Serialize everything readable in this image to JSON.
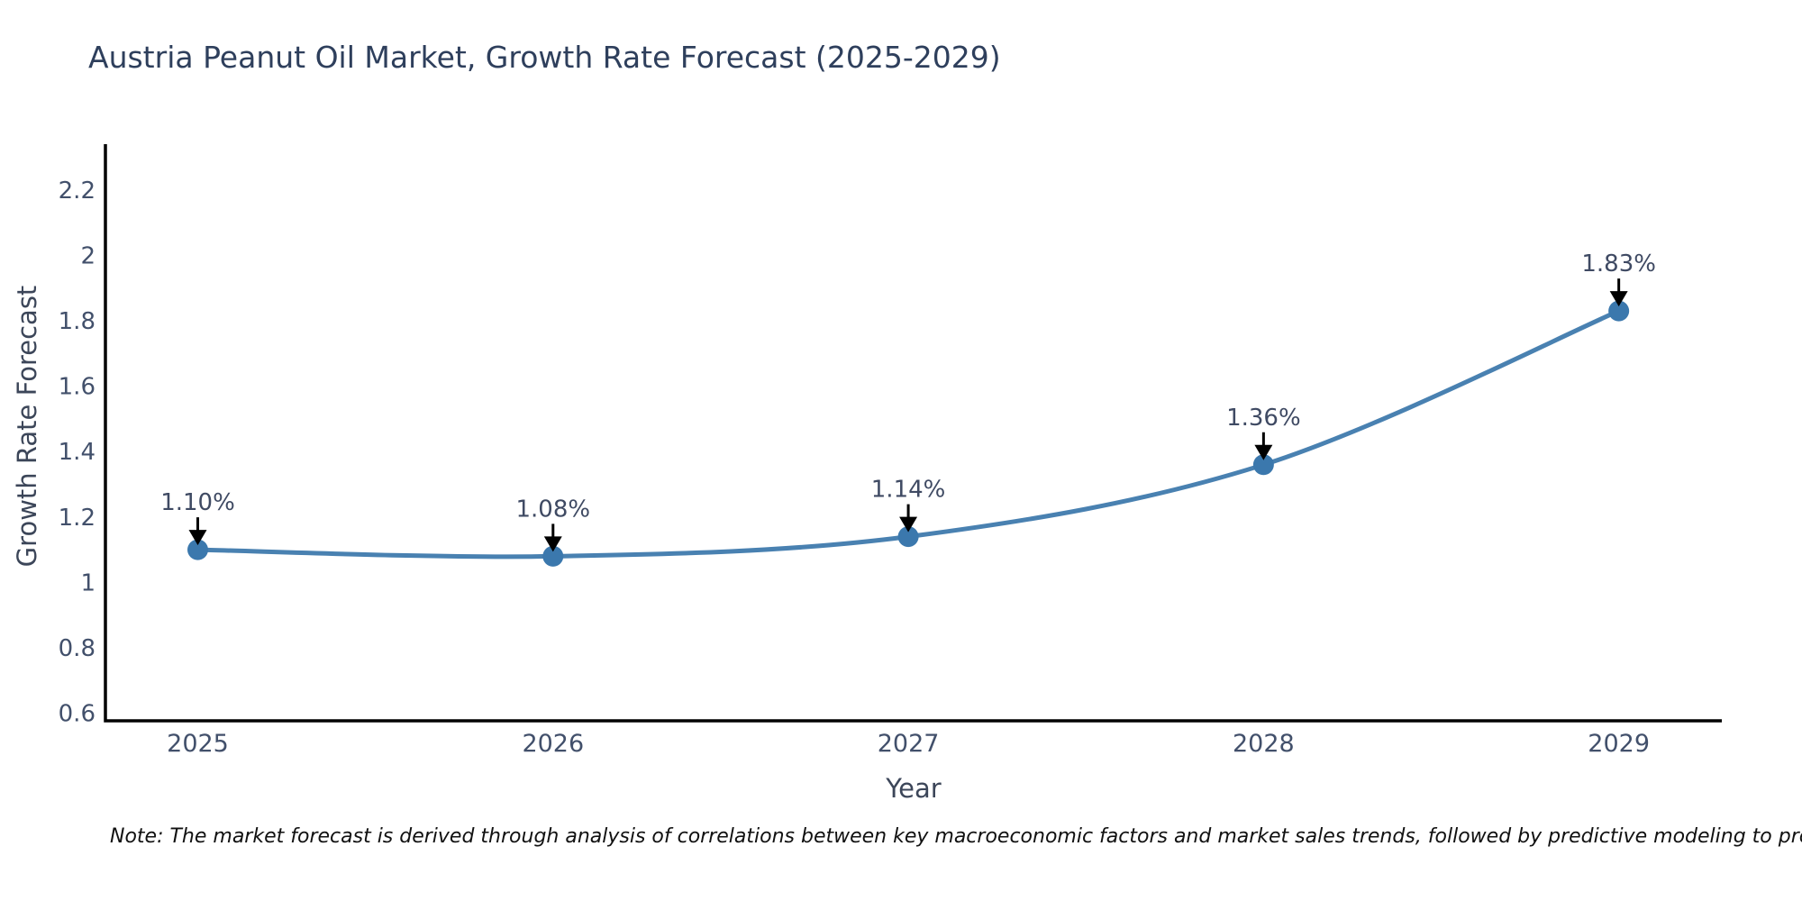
{
  "page": {
    "note": "Note: The market forecast is derived through analysis of correlations between key macroeconomic factors and market sales trends, followed by predictive modeling to project future sales"
  },
  "chart_data": {
    "type": "line",
    "title": "Austria Peanut Oil Market, Growth Rate Forecast (2025-2029)",
    "xlabel": "Year",
    "ylabel": "Growth Rate Forecast",
    "x": [
      2025,
      2026,
      2027,
      2028,
      2029
    ],
    "values": [
      1.1,
      1.08,
      1.14,
      1.36,
      1.83
    ],
    "point_labels": [
      "1.10%",
      "1.08%",
      "1.14%",
      "1.36%",
      "1.83%"
    ],
    "x_ticks": [
      "2025",
      "2026",
      "2027",
      "2028",
      "2029"
    ],
    "y_ticks": [
      0.6,
      0.8,
      1,
      1.2,
      1.4,
      1.6,
      1.8,
      2,
      2.2
    ],
    "xlim": [
      2024.74,
      2029.29
    ],
    "ylim": [
      0.577,
      2.34
    ],
    "grid": false,
    "legend": "none",
    "annotation_style": "black arrow pointing down from label to each data point",
    "colors": {
      "line": "#4981b1",
      "marker": "#3b78ad",
      "arrow": "#000000",
      "axis": "#000000",
      "tick_label": "#42506b",
      "annotation_text": "#3f4a63",
      "title": "#2e3f5c",
      "note": "#111111"
    }
  }
}
